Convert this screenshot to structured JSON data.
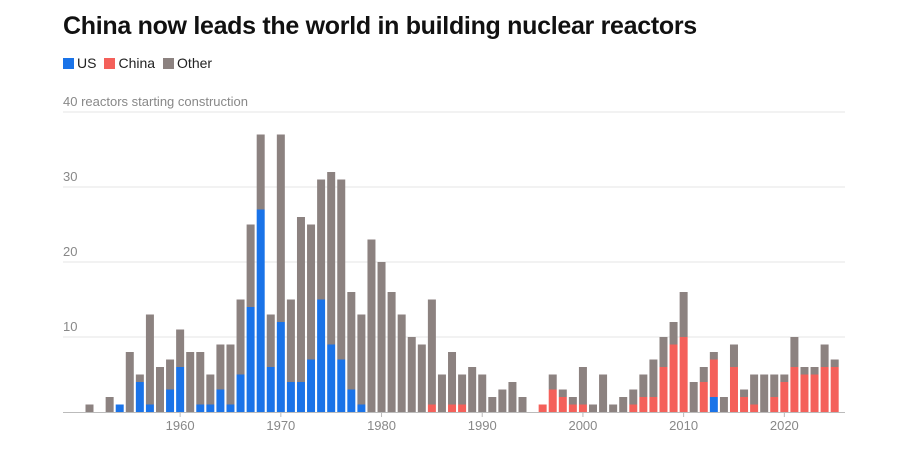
{
  "chart_data": {
    "type": "bar",
    "stacked": true,
    "title": "China now leads the world in building nuclear reactors",
    "ylabel": "reactors starting construction",
    "ylim": [
      0,
      40
    ],
    "yticks": [
      10,
      20,
      30,
      40
    ],
    "top_tick_label": "40 reactors starting construction",
    "xticks": [
      1960,
      1970,
      1980,
      1990,
      2000,
      2010,
      2020
    ],
    "x": [
      1951,
      1952,
      1953,
      1954,
      1955,
      1956,
      1957,
      1958,
      1959,
      1960,
      1961,
      1962,
      1963,
      1964,
      1965,
      1966,
      1967,
      1968,
      1969,
      1970,
      1971,
      1972,
      1973,
      1974,
      1975,
      1976,
      1977,
      1978,
      1979,
      1980,
      1981,
      1982,
      1983,
      1984,
      1985,
      1986,
      1987,
      1988,
      1989,
      1990,
      1991,
      1992,
      1993,
      1994,
      1995,
      1996,
      1997,
      1998,
      1999,
      2000,
      2001,
      2002,
      2003,
      2004,
      2005,
      2006,
      2007,
      2008,
      2009,
      2010,
      2011,
      2012,
      2013,
      2014,
      2015,
      2016,
      2017,
      2018,
      2019,
      2020,
      2021,
      2022,
      2023,
      2024,
      2025
    ],
    "legend_position": "top-left",
    "series": [
      {
        "name": "US",
        "color": "#1a73e8",
        "values": [
          0,
          0,
          0,
          1,
          0,
          4,
          1,
          0,
          3,
          6,
          0,
          1,
          1,
          3,
          1,
          5,
          14,
          27,
          6,
          12,
          4,
          4,
          7,
          15,
          9,
          7,
          3,
          1,
          0,
          0,
          0,
          0,
          0,
          0,
          0,
          0,
          0,
          0,
          0,
          0,
          0,
          0,
          0,
          0,
          0,
          0,
          0,
          0,
          0,
          0,
          0,
          0,
          0,
          0,
          0,
          0,
          0,
          0,
          0,
          0,
          0,
          0,
          2,
          0,
          0,
          0,
          0,
          0,
          0,
          0,
          0,
          0,
          0,
          0,
          0
        ]
      },
      {
        "name": "China",
        "color": "#f4605a",
        "values": [
          0,
          0,
          0,
          0,
          0,
          0,
          0,
          0,
          0,
          0,
          0,
          0,
          0,
          0,
          0,
          0,
          0,
          0,
          0,
          0,
          0,
          0,
          0,
          0,
          0,
          0,
          0,
          0,
          0,
          0,
          0,
          0,
          0,
          0,
          1,
          0,
          1,
          1,
          0,
          0,
          0,
          0,
          0,
          0,
          0,
          1,
          3,
          2,
          1,
          1,
          0,
          0,
          0,
          0,
          1,
          2,
          2,
          6,
          9,
          10,
          0,
          4,
          5,
          0,
          6,
          2,
          1,
          0,
          2,
          4,
          6,
          5,
          5,
          6,
          6
        ]
      },
      {
        "name": "Other",
        "color": "#8c8280",
        "values": [
          1,
          0,
          2,
          0,
          8,
          1,
          12,
          6,
          4,
          5,
          8,
          7,
          4,
          6,
          8,
          10,
          11,
          10,
          7,
          25,
          11,
          22,
          18,
          16,
          23,
          24,
          13,
          12,
          23,
          20,
          16,
          13,
          10,
          9,
          14,
          5,
          7,
          4,
          6,
          5,
          2,
          3,
          4,
          2,
          0,
          0,
          2,
          1,
          1,
          5,
          1,
          5,
          1,
          2,
          2,
          3,
          5,
          4,
          3,
          6,
          4,
          2,
          1,
          2,
          3,
          1,
          4,
          5,
          3,
          1,
          4,
          1,
          1,
          3,
          1
        ]
      }
    ]
  }
}
